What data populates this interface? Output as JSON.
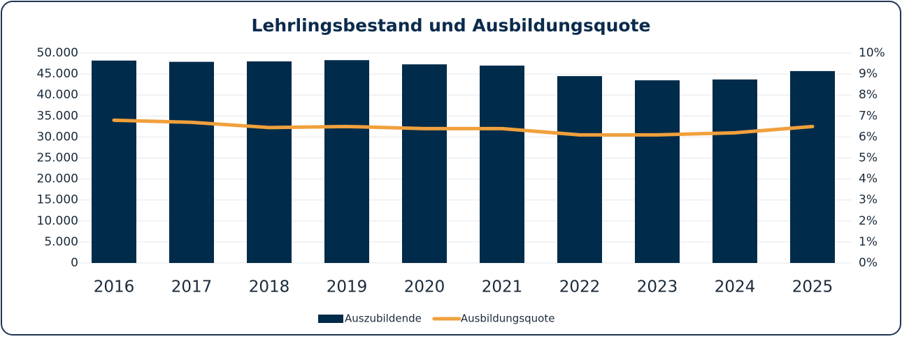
{
  "chart_data": {
    "type": "bar",
    "title": "Lehrlingsbestand und Ausbildungsquote",
    "categories": [
      "2016",
      "2017",
      "2018",
      "2019",
      "2020",
      "2021",
      "2022",
      "2023",
      "2024",
      "2025"
    ],
    "series": [
      {
        "name": "Auszubildende",
        "type": "bar",
        "color": "#002b4a",
        "values": [
          48200,
          47900,
          48000,
          48300,
          47300,
          47000,
          44500,
          43500,
          43700,
          45700
        ]
      },
      {
        "name": "Ausbildungsquote",
        "type": "line",
        "axis": "y2",
        "color": "#f0a03c",
        "values": [
          6.8,
          6.7,
          6.45,
          6.5,
          6.4,
          6.4,
          6.1,
          6.1,
          6.2,
          6.5
        ]
      }
    ],
    "ylim": [
      0,
      50000
    ],
    "yticks": [
      0,
      {
        "value": 5000,
        "label": "5.000"
      },
      {
        "value": 10000,
        "label": "10.000"
      },
      {
        "value": 15000,
        "label": "15.000"
      },
      {
        "value": 20000,
        "label": "20.000"
      },
      {
        "value": 25000,
        "label": "25.000"
      },
      {
        "value": 30000,
        "label": "30.000"
      },
      {
        "value": 35000,
        "label": "35.000"
      },
      {
        "value": 40000,
        "label": "40.000"
      },
      {
        "value": 45000,
        "label": "45.000"
      },
      {
        "value": 50000,
        "label": "50.000"
      }
    ],
    "y2lim": [
      0,
      10
    ],
    "y2ticks": [
      {
        "value": 0,
        "label": "0%"
      },
      {
        "value": 1,
        "label": "1%"
      },
      {
        "value": 2,
        "label": "2%"
      },
      {
        "value": 3,
        "label": "3%"
      },
      {
        "value": 4,
        "label": "4%"
      },
      {
        "value": 5,
        "label": "5%"
      },
      {
        "value": 6,
        "label": "6%"
      },
      {
        "value": 7,
        "label": "7%"
      },
      {
        "value": 8,
        "label": "8%"
      },
      {
        "value": 9,
        "label": "9%"
      },
      {
        "value": 10,
        "label": "10%"
      }
    ],
    "grid": true,
    "legend": "bottom"
  }
}
